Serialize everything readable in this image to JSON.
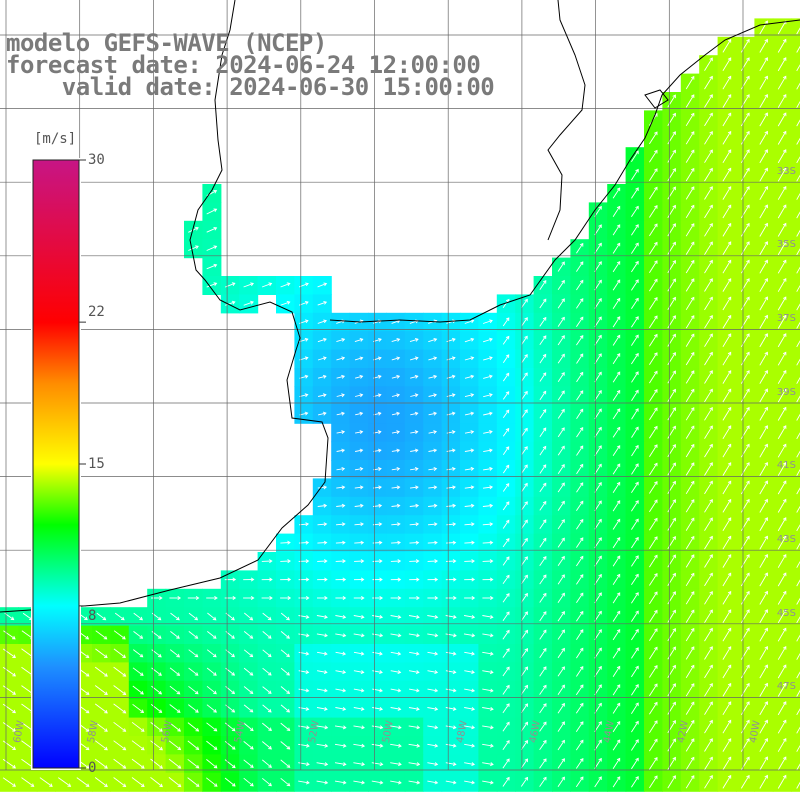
{
  "header": {
    "model": "modelo GEFS-WAVE (NCEP)",
    "forecast": "forecast date: 2024-06-24 12:00:00",
    "valid": "    valid date: 2024-06-30 15:00:00"
  },
  "colorbar": {
    "unit": "[m/s]",
    "ticks": [
      {
        "value": 30,
        "label": "30"
      },
      {
        "value": 22,
        "label": "22"
      },
      {
        "value": 15,
        "label": "15"
      },
      {
        "value": 8,
        "label": "8"
      },
      {
        "value": 0,
        "label": "0"
      }
    ],
    "stops": [
      {
        "value": 0,
        "color": "#0000ff"
      },
      {
        "value": 5,
        "color": "#1e90ff"
      },
      {
        "value": 8,
        "color": "#00ffff"
      },
      {
        "value": 12,
        "color": "#00ff00"
      },
      {
        "value": 15,
        "color": "#ffff00"
      },
      {
        "value": 19,
        "color": "#ff8c00"
      },
      {
        "value": 22,
        "color": "#ff0000"
      },
      {
        "value": 30,
        "color": "#c71585"
      }
    ]
  },
  "grid": {
    "lon_labels": [
      "60W",
      "58W",
      "56W",
      "54W",
      "52W",
      "50W",
      "48W",
      "46W",
      "44W",
      "42W",
      "40W"
    ],
    "lat_labels": [
      "33S",
      "35S",
      "37S",
      "39S",
      "41S",
      "43S",
      "45S",
      "47S"
    ]
  },
  "colors": {
    "land": "#ffffff",
    "grid": "#666666",
    "coast": "#000000",
    "arrow": "#ffffff"
  }
}
